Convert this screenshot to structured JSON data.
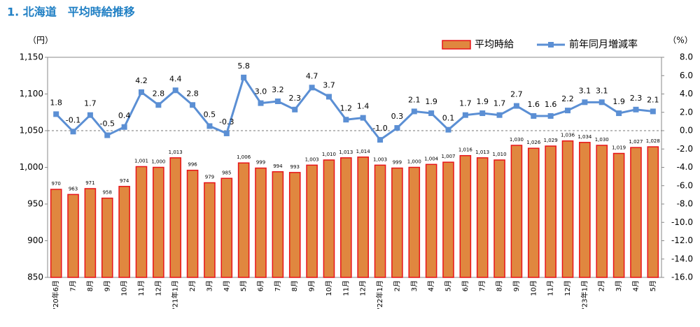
{
  "chart_data": {
    "type": "combo",
    "title": "1. 北海道　平均時給推移",
    "ylabel": "（円）",
    "y2label": "（%）",
    "legend": "top-right",
    "categories": [
      "'20年6月",
      "7月",
      "8月",
      "9月",
      "10月",
      "11月",
      "12月",
      "'21年1月",
      "2月",
      "3月",
      "4月",
      "5月",
      "6月",
      "7月",
      "8月",
      "9月",
      "10月",
      "11月",
      "12月",
      "'22年1月",
      "2月",
      "3月",
      "4月",
      "5月",
      "6月",
      "7月",
      "8月",
      "9月",
      "10月",
      "11月",
      "12月",
      "'23年1月",
      "2月",
      "3月",
      "4月",
      "5月"
    ],
    "ylim": [
      850,
      1150
    ],
    "yticks": [
      {
        "value": 1150,
        "label": "1,150"
      },
      {
        "value": 1100,
        "label": "1,100"
      },
      {
        "value": 1050,
        "label": "1,050"
      },
      {
        "value": 1000,
        "label": "1,000"
      },
      950,
      900,
      850
    ],
    "y2lim": [
      -16,
      8
    ],
    "y2ticks": [
      {
        "value": 8,
        "label": "8.0"
      },
      {
        "value": 6,
        "label": "6.0"
      },
      {
        "value": 4,
        "label": "4.0"
      },
      {
        "value": 2,
        "label": "2.0"
      },
      {
        "value": 0,
        "label": "0.0"
      },
      {
        "value": -2,
        "label": "-2.0"
      },
      {
        "value": -4,
        "label": "-4.0"
      },
      {
        "value": -6,
        "label": "-6.0"
      },
      {
        "value": -8,
        "label": "-8.0"
      },
      {
        "value": -10,
        "label": "-10.0"
      },
      {
        "value": -12,
        "label": "-12.0"
      },
      {
        "value": -14,
        "label": "-14.0"
      },
      {
        "value": -16,
        "label": "-16.0"
      }
    ],
    "series": [
      {
        "name": "平均時給",
        "type": "bar",
        "color": "#e0873f",
        "edgecolor": "#e8141a",
        "values": [
          970,
          963,
          971,
          958,
          974,
          1001,
          1000,
          1013,
          996,
          979,
          985,
          1006,
          999,
          994,
          993,
          1003,
          1010,
          1013,
          1014,
          1003,
          999,
          1000,
          1004,
          1007,
          1016,
          1013,
          1010,
          1030,
          1026,
          1029,
          1036,
          1034,
          1030,
          1019,
          1027,
          1028
        ],
        "value_labels": [
          "970",
          "963",
          "971",
          "958",
          "974",
          "1,001",
          "1,000",
          "1,013",
          "996",
          "979",
          "985",
          "1,006",
          "999",
          "994",
          "993",
          "1,003",
          "1,010",
          "1,013",
          "1,014",
          "1,003",
          "999",
          "1,000",
          "1,004",
          "1,007",
          "1,016",
          "1,013",
          "1,010",
          "1,030",
          "1,026",
          "1,029",
          "1,036",
          "1,034",
          "1,030",
          "1,019",
          "1,027",
          "1,028"
        ]
      },
      {
        "name": "前年同月増減率",
        "type": "line",
        "axis": "y2",
        "color": "#5b8fd4",
        "values": [
          1.8,
          -0.1,
          1.7,
          -0.5,
          0.4,
          4.2,
          2.8,
          4.4,
          2.8,
          0.5,
          -0.3,
          5.8,
          3.0,
          3.2,
          2.3,
          4.7,
          3.7,
          1.2,
          1.4,
          -1.0,
          0.3,
          2.1,
          1.9,
          0.1,
          1.7,
          1.9,
          1.7,
          2.7,
          1.6,
          1.6,
          2.2,
          3.1,
          3.1,
          1.9,
          2.3,
          2.1
        ],
        "value_labels": [
          "1.8",
          "-0.1",
          "1.7",
          "-0.5",
          "0.4",
          "4.2",
          "2.8",
          "4.4",
          "2.8",
          "0.5",
          "-0.3",
          "5.8",
          "3.0",
          "3.2",
          "2.3",
          "4.7",
          "3.7",
          "1.2",
          "1.4",
          "-1.0",
          "0.3",
          "2.1",
          "1.9",
          "0.1",
          "1.7",
          "1.9",
          "1.7",
          "2.7",
          "1.6",
          "1.6",
          "2.2",
          "3.1",
          "3.1",
          "1.9",
          "2.3",
          "2.1"
        ]
      }
    ]
  }
}
